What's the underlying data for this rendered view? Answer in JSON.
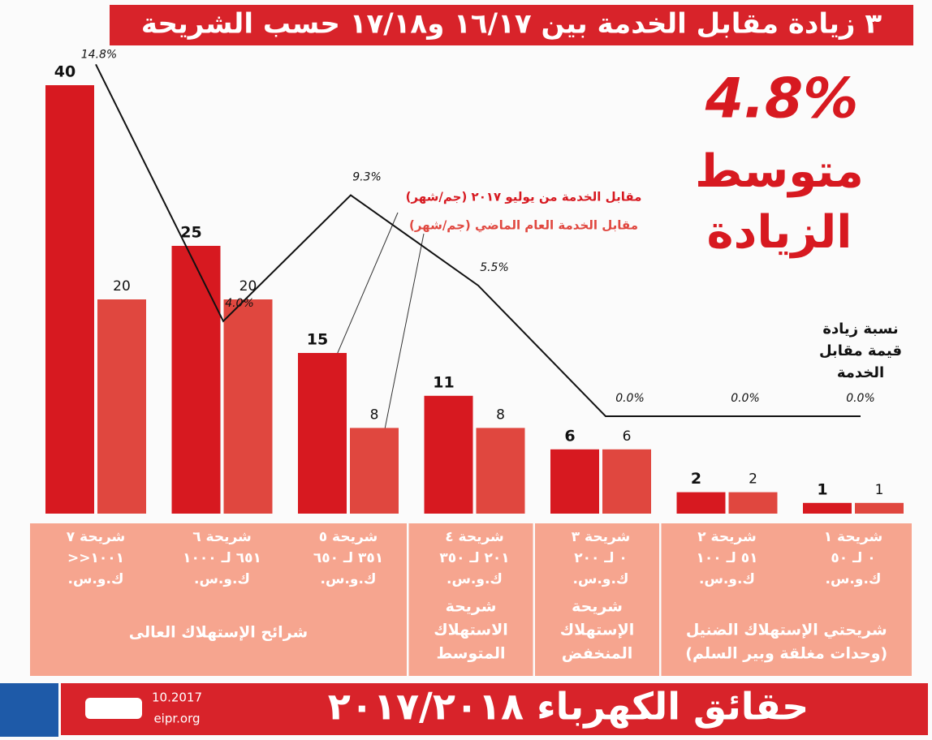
{
  "chart_data": {
    "type": "bar",
    "title": "٣ زيادة مقابل الخدمة بين ١٦/١٧ و١٧/١٨ حسب الشريحة",
    "categories": [
      [
        "شريحة ٧",
        "١٠٠١<<",
        "ك.و.س."
      ],
      [
        "شريحة ٦",
        "٦٥١ لـ ١٠٠٠",
        "ك.و.س."
      ],
      [
        "شريحة ٥",
        "٣٥١ لـ ٦٥٠",
        "ك.و.س."
      ],
      [
        "شريحة ٤",
        "٢٠١ لـ ٣٥٠",
        "ك.و.س."
      ],
      [
        "شريحة ٣",
        "٠ لـ ٢٠٠",
        "ك.و.س."
      ],
      [
        "شريحة ٢",
        "٥١ لـ ١٠٠",
        "ك.و.س."
      ],
      [
        "شريحة ١",
        "٠ لـ ٥٠",
        "ك.و.س."
      ]
    ],
    "category_groups": [
      [
        "شرائح الإستهلاك العالى"
      ],
      [
        "شريحة",
        "الاستهلاك",
        "المتوسط"
      ],
      [
        "شريحة",
        "الإستهلاك",
        "المنخفض"
      ],
      [
        "شريحتي الإستهلاك الضنيل",
        "(وحدات مغلقة وبير السلم)"
      ]
    ],
    "series": [
      {
        "name": "مقابل الخدمة من يوليو ٢٠١٧ (جم/شهر)",
        "color": "#d71920",
        "values": [
          40,
          25,
          15,
          11,
          6,
          2,
          1
        ]
      },
      {
        "name": "مقابل الخدمة العام الماضي (جم/شهر)",
        "color": "#e0473f",
        "values": [
          20,
          20,
          8,
          8,
          6,
          2,
          1
        ]
      }
    ],
    "line": {
      "name": [
        "نسبة زيادة",
        "قيمة مقابل",
        "الخدمة"
      ],
      "color": "#111111",
      "values": [
        14.8,
        4.0,
        9.3,
        5.5,
        0.0,
        0.0,
        0.0
      ],
      "value_labels": [
        "14.8%",
        "4.0%",
        "9.3%",
        "5.5%",
        "0.0%",
        "0.0%",
        "0.0%"
      ]
    },
    "average": "4.8%",
    "average_caption": [
      "متوسط",
      "الزيادة"
    ],
    "footer": {
      "title": "حقائق الكهرباء ٢٠١٧/٢٠١٨",
      "date": "10.2017",
      "site": "eipr.org"
    }
  }
}
